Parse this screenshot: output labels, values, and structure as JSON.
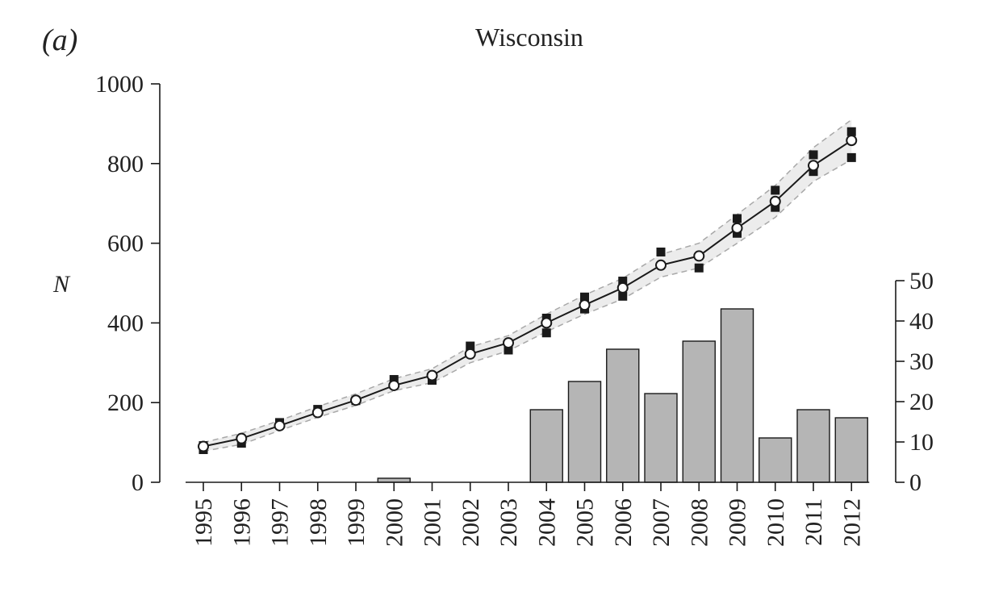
{
  "panel_label": "(a)",
  "chart_data": {
    "type": "bar+line",
    "title": "Wisconsin",
    "ylabel": "N",
    "x": [
      1995,
      1996,
      1997,
      1998,
      1999,
      2000,
      2001,
      2002,
      2003,
      2004,
      2005,
      2006,
      2007,
      2008,
      2009,
      2010,
      2011,
      2012
    ],
    "x_tick_labels": [
      "1995",
      "1996",
      "1997",
      "1998",
      "1999",
      "2000",
      "2001",
      "2002",
      "2003",
      "2004",
      "2005",
      "2006",
      "2007",
      "2008",
      "2009",
      "2010",
      "2011",
      "2012"
    ],
    "ylim": [
      0,
      1000
    ],
    "y_ticks": [
      0,
      200,
      400,
      600,
      800,
      1000
    ],
    "y_tick_labels": [
      "0",
      "200",
      "400",
      "600",
      "800",
      "1000"
    ],
    "y2lim": [
      0,
      50
    ],
    "y2_ticks": [
      0,
      10,
      20,
      30,
      40,
      50
    ],
    "y2_tick_labels": [
      "0",
      "10",
      "20",
      "30",
      "40",
      "50"
    ],
    "bars": {
      "axis": "right",
      "values": [
        0,
        0,
        0,
        0,
        0,
        1,
        0,
        0,
        0,
        18,
        25,
        33,
        22,
        35,
        43,
        11,
        18,
        16
      ]
    },
    "estimate": {
      "axis": "left",
      "values": [
        90,
        110,
        142,
        175,
        206,
        243,
        268,
        322,
        350,
        400,
        445,
        488,
        545,
        568,
        638,
        705,
        795,
        858
      ],
      "lower": [
        78,
        95,
        130,
        163,
        193,
        230,
        250,
        300,
        330,
        378,
        422,
        460,
        515,
        538,
        600,
        665,
        755,
        810
      ],
      "upper": [
        100,
        123,
        155,
        190,
        222,
        260,
        285,
        340,
        368,
        422,
        470,
        512,
        572,
        600,
        672,
        745,
        840,
        910
      ]
    },
    "observations": {
      "axis": "left",
      "points": [
        [
          1995,
          82
        ],
        [
          1995,
          92
        ],
        [
          1996,
          98
        ],
        [
          1997,
          150
        ],
        [
          1998,
          183
        ],
        [
          1999,
          205
        ],
        [
          2000,
          258
        ],
        [
          2001,
          256
        ],
        [
          2002,
          342
        ],
        [
          2003,
          332
        ],
        [
          2004,
          375
        ],
        [
          2004,
          412
        ],
        [
          2005,
          435
        ],
        [
          2005,
          465
        ],
        [
          2006,
          467
        ],
        [
          2006,
          505
        ],
        [
          2007,
          578
        ],
        [
          2008,
          538
        ],
        [
          2009,
          625
        ],
        [
          2009,
          662
        ],
        [
          2010,
          690
        ],
        [
          2010,
          733
        ],
        [
          2011,
          780
        ],
        [
          2011,
          822
        ],
        [
          2012,
          815
        ],
        [
          2012,
          880
        ]
      ]
    },
    "colors": {
      "bar_fill": "#b5b5b5",
      "bar_stroke": "#1a1a1a",
      "band_fill": "#ececec",
      "band_stroke": "#a8a8a8",
      "line": "#1a1a1a",
      "observation": "#1a1a1a",
      "estimate_marker_fill": "#ffffff"
    },
    "grid": false,
    "legend": "none"
  }
}
